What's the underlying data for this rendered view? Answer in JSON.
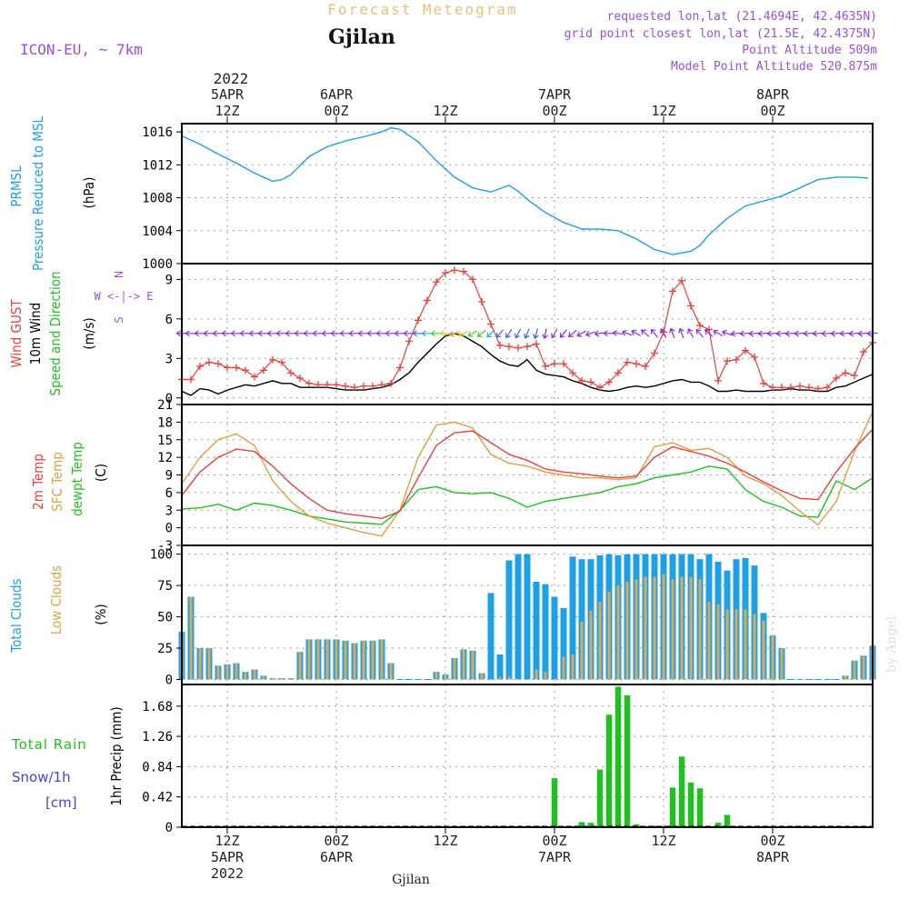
{
  "header": {
    "suptitle": "Forecast Meteogram",
    "location": "Gjilan",
    "model": "ICON-EU, ~ 7km",
    "requested": "requested lon,lat (21.4694E, 42.4635N)",
    "grid_point": "grid point closest lon,lat (21.5E, 42.4375N)",
    "point_alt": "Point Altitude 509m",
    "model_alt": "Model Point Altitude 520.875m",
    "credit": "by Angel",
    "footer_location": "Gjilan"
  },
  "time_axis": {
    "top_year": "2022",
    "ticks": [
      {
        "t": 12,
        "top1": "5APR",
        "top2": "12Z",
        "bottom1": "12Z",
        "bottom2": "5APR",
        "bottom3": "2022"
      },
      {
        "t": 24,
        "top1": "6APR",
        "top2": "00Z",
        "bottom1": "00Z",
        "bottom2": "6APR",
        "bottom3": ""
      },
      {
        "t": 36,
        "top1": "",
        "top2": "12Z",
        "bottom1": "12Z",
        "bottom2": "",
        "bottom3": ""
      },
      {
        "t": 48,
        "top1": "7APR",
        "top2": "00Z",
        "bottom1": "00Z",
        "bottom2": "7APR",
        "bottom3": ""
      },
      {
        "t": 60,
        "top1": "",
        "top2": "12Z",
        "bottom1": "12Z",
        "bottom2": "",
        "bottom3": ""
      },
      {
        "t": 72,
        "top1": "8APR",
        "top2": "00Z",
        "bottom1": "00Z",
        "bottom2": "8APR",
        "bottom3": ""
      }
    ],
    "range_hours": [
      7,
      83
    ]
  },
  "colors": {
    "pressure": "#1ea0e6",
    "gust": "#e84040",
    "wind": "#000000",
    "t2m": "#e84040",
    "sfc": "#e0a040",
    "dew": "#20c020",
    "total_clouds": "#1ea0e6",
    "low_clouds": "#d6aa5a",
    "rain": "#20c020",
    "snow": "#4040e0",
    "purple": "#9b4fd6"
  },
  "panels": {
    "pressure": {
      "labels": [
        "PRMSL",
        "Pressure Reduced to MSL",
        "(hPa)"
      ],
      "yticks": [
        "1016",
        "1012",
        "1008",
        "1004",
        "1000"
      ]
    },
    "wind": {
      "labels": [
        "Wind GUST",
        "10m Wind",
        "Speed and Direction",
        "(m/s)"
      ],
      "compass": [
        "N",
        "W <-|-> E",
        "S"
      ],
      "yticks": [
        "9",
        "6",
        "3",
        "0"
      ]
    },
    "temp": {
      "labels": [
        "2m Temp",
        "SFC Temp",
        "dewpt Temp",
        "(C)"
      ],
      "yticks": [
        "21",
        "18",
        "15",
        "12",
        "9",
        "6",
        "3",
        "0",
        "-3"
      ]
    },
    "clouds": {
      "labels": [
        "Total Clouds",
        "Low Clouds",
        "(%)"
      ],
      "yticks": [
        "100",
        "75",
        "50",
        "25",
        "0"
      ]
    },
    "precip": {
      "labels": [
        "Total Rain",
        "Snow/1h",
        "[cm]",
        "1hr Precip (mm)"
      ],
      "yticks": [
        "1.68",
        "1.26",
        "0.84",
        "0.42",
        "0"
      ]
    }
  },
  "chart_data": [
    {
      "type": "line",
      "name": "PRMSL",
      "ylabel": "(hPa)",
      "ylim": [
        1000,
        1017
      ],
      "x": [
        7,
        9,
        11,
        13,
        15,
        17,
        18,
        19,
        21,
        23,
        25,
        27,
        28,
        29,
        30,
        31,
        33,
        35,
        37,
        39,
        41,
        43,
        44,
        45,
        47,
        49,
        51,
        53,
        55,
        57,
        59,
        61,
        63,
        64,
        65,
        67,
        69,
        71,
        73,
        75,
        77,
        79,
        81,
        82.5
      ],
      "values": [
        1015.5,
        1014.5,
        1013.3,
        1012.2,
        1011,
        1010,
        1010.2,
        1010.8,
        1013,
        1014.2,
        1014.9,
        1015.4,
        1015.7,
        1016,
        1016.5,
        1016.3,
        1014.8,
        1012.5,
        1010.5,
        1009.2,
        1008.7,
        1009.5,
        1008.8,
        1007.8,
        1006.2,
        1005,
        1004.2,
        1004.2,
        1004,
        1003,
        1001.7,
        1001.1,
        1001.5,
        1002.2,
        1003.5,
        1005.5,
        1007,
        1007.6,
        1008.2,
        1009.2,
        1010.2,
        1010.5,
        1010.5,
        1010.4
      ]
    },
    {
      "type": "line",
      "name": "Wind GUST / 10m Wind",
      "ylabel": "(m/s)",
      "ylim": [
        0,
        10
      ],
      "x": [
        7,
        8,
        9,
        10,
        11,
        12,
        13,
        14,
        15,
        16,
        17,
        18,
        19,
        20,
        21,
        22,
        23,
        24,
        25,
        26,
        27,
        28,
        29,
        30,
        31,
        32,
        33,
        34,
        35,
        36,
        37,
        38,
        39,
        40,
        41,
        42,
        43,
        44,
        45,
        46,
        47,
        48,
        49,
        50,
        51,
        52,
        53,
        54,
        55,
        56,
        57,
        58,
        59,
        60,
        61,
        62,
        63,
        64,
        65,
        66,
        67,
        68,
        69,
        70,
        71,
        72,
        73,
        74,
        75,
        76,
        77,
        78,
        79,
        80,
        81,
        82,
        83
      ],
      "series": [
        {
          "name": "Wind GUST",
          "values": [
            1.4,
            1.4,
            2.4,
            2.7,
            2.6,
            2.3,
            2.3,
            2.1,
            1.6,
            2.1,
            2.9,
            2.7,
            1.9,
            1.5,
            1.1,
            1,
            1,
            1,
            0.9,
            0.8,
            0.9,
            0.9,
            1,
            1.1,
            2.3,
            4.3,
            5.9,
            7.4,
            8.8,
            9.5,
            9.7,
            9.6,
            9,
            7.3,
            5.6,
            4,
            3.9,
            3.8,
            3.9,
            4.1,
            2.4,
            2.6,
            2.6,
            1.9,
            1.3,
            1.2,
            0.8,
            1.2,
            1.9,
            2.7,
            2.6,
            2.4,
            3.4,
            5,
            8.1,
            8.9,
            7,
            5.5,
            5.2,
            1.3,
            2.8,
            2.9,
            3.6,
            3.1,
            1.1,
            0.8,
            0.8,
            0.8,
            0.9,
            0.8,
            0.7,
            0.8,
            1.5,
            1.9,
            1.7,
            3.5,
            4.2
          ]
        },
        {
          "name": "10m Wind",
          "values": [
            0.5,
            0.2,
            0.7,
            0.6,
            0.3,
            0.6,
            0.8,
            1,
            0.9,
            1.1,
            1.3,
            1.1,
            1.1,
            0.8,
            0.8,
            0.8,
            0.8,
            0.7,
            0.6,
            0.6,
            0.6,
            0.7,
            0.8,
            1,
            1.4,
            1.9,
            2.7,
            3.4,
            4.1,
            4.7,
            4.9,
            4.7,
            4.3,
            3.9,
            3.3,
            2.8,
            2.5,
            2.4,
            2.9,
            2.1,
            1.8,
            1.7,
            1.6,
            1.3,
            1.1,
            0.8,
            0.6,
            0.5,
            0.6,
            0.8,
            0.9,
            0.8,
            0.9,
            1.1,
            1.3,
            1.4,
            1.2,
            1.2,
            0.9,
            0.5,
            0.5,
            0.6,
            0.5,
            0.5,
            0.5,
            0.6,
            0.6,
            0.7,
            0.6,
            0.6,
            0.5,
            0.5,
            0.8,
            0.9,
            1.2,
            1.5,
            1.8
          ]
        }
      ]
    },
    {
      "type": "line",
      "name": "Temperatures",
      "ylabel": "(C)",
      "ylim": [
        -3,
        21
      ],
      "x": [
        7,
        9,
        11,
        13,
        15,
        17,
        19,
        21,
        23,
        25,
        27,
        29,
        31,
        33,
        35,
        37,
        39,
        41,
        43,
        45,
        47,
        49,
        51,
        53,
        55,
        57,
        59,
        61,
        63,
        65,
        67,
        69,
        71,
        73,
        75,
        77,
        79,
        81,
        83
      ],
      "series": [
        {
          "name": "2m Temp",
          "values": [
            5.5,
            9.5,
            12,
            13.4,
            13,
            10.5,
            7.5,
            5,
            3,
            2.4,
            2,
            1.6,
            2.8,
            8.5,
            14,
            16.2,
            16.5,
            14.5,
            12.5,
            11.5,
            10,
            9.5,
            9.2,
            8.8,
            8.5,
            8.8,
            12,
            13.8,
            13,
            12.2,
            11,
            9.5,
            7.8,
            6.3,
            5,
            4.8,
            9.5,
            13.5,
            16.8
          ]
        },
        {
          "name": "SFC Temp",
          "values": [
            7.5,
            12,
            15,
            16,
            14,
            8,
            4.5,
            2,
            0.8,
            0,
            -0.8,
            -1.4,
            3,
            12,
            17.5,
            18,
            17,
            12.5,
            11,
            10.5,
            9.5,
            9,
            8.5,
            8.5,
            8.2,
            8.5,
            13.8,
            14.5,
            13.2,
            13.5,
            12,
            8.8,
            7.5,
            5.5,
            2.8,
            0.5,
            4.5,
            13,
            19.8
          ]
        },
        {
          "name": "dewpt Temp",
          "values": [
            3.2,
            3.4,
            4,
            3,
            4.2,
            3.8,
            3,
            2,
            1.5,
            1,
            0.8,
            0.6,
            3,
            6.5,
            7,
            6,
            5.8,
            6,
            5,
            3.5,
            4.5,
            5,
            5.5,
            6,
            7,
            7.5,
            8.5,
            9,
            9.5,
            10.5,
            10,
            6.5,
            4.5,
            3.5,
            2,
            1.8,
            8,
            6.5,
            8.5
          ]
        }
      ]
    },
    {
      "type": "bar",
      "name": "Clouds",
      "ylabel": "(%)",
      "ylim": [
        0,
        100
      ],
      "x": [
        7,
        8,
        9,
        10,
        11,
        12,
        13,
        14,
        15,
        16,
        17,
        18,
        19,
        20,
        21,
        22,
        23,
        24,
        25,
        26,
        27,
        28,
        29,
        30,
        31,
        32,
        33,
        34,
        35,
        36,
        37,
        38,
        39,
        40,
        41,
        42,
        43,
        44,
        45,
        46,
        47,
        48,
        49,
        50,
        51,
        52,
        53,
        54,
        55,
        56,
        57,
        58,
        59,
        60,
        61,
        62,
        63,
        64,
        65,
        66,
        67,
        68,
        69,
        70,
        71,
        72,
        73,
        74,
        75,
        76,
        77,
        78,
        79,
        80,
        81,
        82,
        83
      ],
      "series": [
        {
          "name": "Total Clouds",
          "values": [
            38,
            66,
            25,
            25,
            11,
            12,
            13,
            6,
            8,
            3,
            1,
            1,
            1,
            22,
            32,
            32,
            32,
            32,
            31,
            29,
            31,
            31,
            32,
            13,
            0,
            0,
            0,
            0,
            6,
            4,
            17,
            24,
            23,
            5,
            69,
            20,
            95,
            100,
            100,
            78,
            76,
            66,
            57,
            98,
            96,
            96,
            99,
            100,
            99,
            100,
            100,
            100,
            100,
            100,
            100,
            100,
            100,
            96,
            100,
            94,
            87,
            96,
            97,
            91,
            53,
            35,
            25,
            0,
            0,
            0,
            0,
            0,
            0,
            3,
            15,
            19,
            27
          ]
        },
        {
          "name": "Low Clouds",
          "values": [
            38,
            66,
            25,
            25,
            11,
            12,
            13,
            6,
            8,
            3,
            1,
            1,
            1,
            22,
            32,
            32,
            32,
            32,
            31,
            29,
            31,
            31,
            32,
            13,
            0,
            0,
            0,
            0,
            6,
            4,
            17,
            24,
            23,
            5,
            0,
            2,
            2,
            0,
            0,
            8,
            6,
            0,
            18,
            20,
            46,
            55,
            62,
            70,
            75,
            78,
            80,
            82,
            82,
            84,
            80,
            82,
            82,
            80,
            62,
            60,
            56,
            56,
            56,
            52,
            47,
            35,
            25,
            0,
            0,
            0,
            0,
            0,
            0,
            3,
            15,
            19,
            27
          ]
        }
      ]
    },
    {
      "type": "bar",
      "name": "1hr Precip",
      "ylabel": "1hr Precip (mm)",
      "ylim": [
        0,
        1.9
      ],
      "x": [
        48,
        51,
        52,
        53,
        54,
        55,
        56,
        57,
        59,
        61,
        62,
        63,
        64,
        66,
        67
      ],
      "series": [
        {
          "name": "Total Rain",
          "values": [
            0.68,
            0.07,
            0.06,
            0.8,
            1.56,
            1.95,
            1.83,
            0.04,
            0.02,
            0.55,
            0.98,
            0.62,
            0.54,
            0.06,
            0.17
          ]
        },
        {
          "name": "Snow/1h",
          "values": [
            0,
            0,
            0,
            0,
            0,
            0,
            0,
            0,
            0,
            0,
            0,
            0,
            0,
            0,
            0
          ]
        }
      ]
    }
  ]
}
